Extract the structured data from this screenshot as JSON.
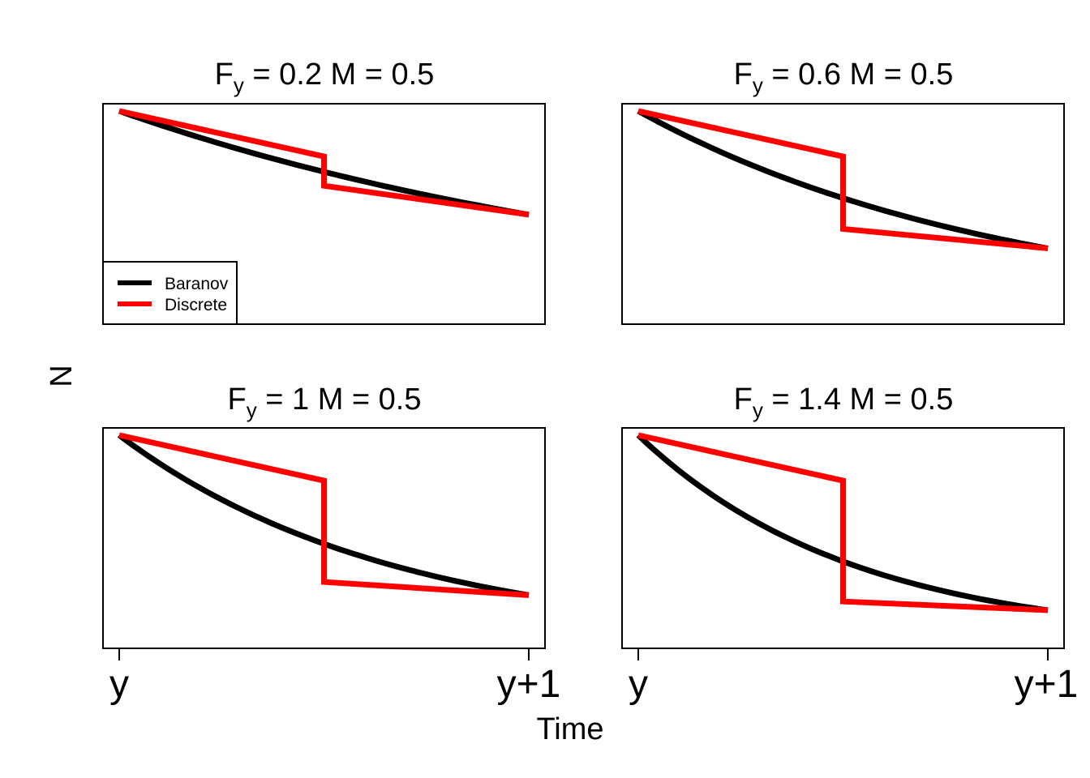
{
  "figure": {
    "xlabel": "Time",
    "ylabel": "N"
  },
  "legend": {
    "entries": [
      {
        "label": "Baranov",
        "color": "#000000"
      },
      {
        "label": "Discrete",
        "color": "#ff0000"
      }
    ]
  },
  "chart_data": [
    {
      "type": "line",
      "title_main": "F",
      "title_sub": "y",
      "title_rest": " = 0.2 M = 0.5",
      "F": 0.2,
      "M": 0.5,
      "xticks": [
        {
          "x": 0,
          "label": "y"
        },
        {
          "x": 1,
          "label": "y+1"
        }
      ],
      "show_xaxis": false,
      "series": [
        {
          "name": "Baranov",
          "color": "#000000",
          "x": [
            0,
            0.25,
            0.5,
            0.75,
            1.0
          ],
          "y": [
            1.0,
            0.839,
            0.705,
            0.592,
            0.497
          ]
        },
        {
          "name": "Discrete",
          "color": "#ff0000",
          "x": [
            0,
            0.5,
            0.5,
            1.0
          ],
          "y": [
            1.0,
            0.779,
            0.637,
            0.497
          ]
        }
      ]
    },
    {
      "type": "line",
      "title_main": "F",
      "title_sub": "y",
      "title_rest": " = 0.6 M = 0.5",
      "F": 0.6,
      "M": 0.5,
      "xticks": [
        {
          "x": 0,
          "label": "y"
        },
        {
          "x": 1,
          "label": "y+1"
        }
      ],
      "show_xaxis": false,
      "series": [
        {
          "name": "Baranov",
          "color": "#000000",
          "x": [
            0,
            0.25,
            0.5,
            0.75,
            1.0
          ],
          "y": [
            1.0,
            0.76,
            0.577,
            0.439,
            0.333
          ]
        },
        {
          "name": "Discrete",
          "color": "#ff0000",
          "x": [
            0,
            0.5,
            0.5,
            1.0
          ],
          "y": [
            1.0,
            0.779,
            0.427,
            0.333
          ]
        }
      ]
    },
    {
      "type": "line",
      "title_main": "F",
      "title_sub": "y",
      "title_rest": " = 1 M = 0.5",
      "F": 1.0,
      "M": 0.5,
      "xticks": [
        {
          "x": 0,
          "label": "y"
        },
        {
          "x": 1,
          "label": "y+1"
        }
      ],
      "show_xaxis": true,
      "series": [
        {
          "name": "Baranov",
          "color": "#000000",
          "x": [
            0,
            0.25,
            0.5,
            0.75,
            1.0
          ],
          "y": [
            1.0,
            0.687,
            0.472,
            0.325,
            0.223
          ]
        },
        {
          "name": "Discrete",
          "color": "#ff0000",
          "x": [
            0,
            0.5,
            0.5,
            1.0
          ],
          "y": [
            1.0,
            0.779,
            0.287,
            0.223
          ]
        }
      ]
    },
    {
      "type": "line",
      "title_main": "F",
      "title_sub": "y",
      "title_rest": " = 1.4 M = 0.5",
      "F": 1.4,
      "M": 0.5,
      "xticks": [
        {
          "x": 0,
          "label": "y"
        },
        {
          "x": 1,
          "label": "y+1"
        }
      ],
      "show_xaxis": true,
      "series": [
        {
          "name": "Baranov",
          "color": "#000000",
          "x": [
            0,
            0.25,
            0.5,
            0.75,
            1.0
          ],
          "y": [
            1.0,
            0.622,
            0.387,
            0.24,
            0.15
          ]
        },
        {
          "name": "Discrete",
          "color": "#ff0000",
          "x": [
            0,
            0.5,
            0.5,
            1.0
          ],
          "y": [
            1.0,
            0.779,
            0.192,
            0.15
          ]
        }
      ]
    }
  ]
}
